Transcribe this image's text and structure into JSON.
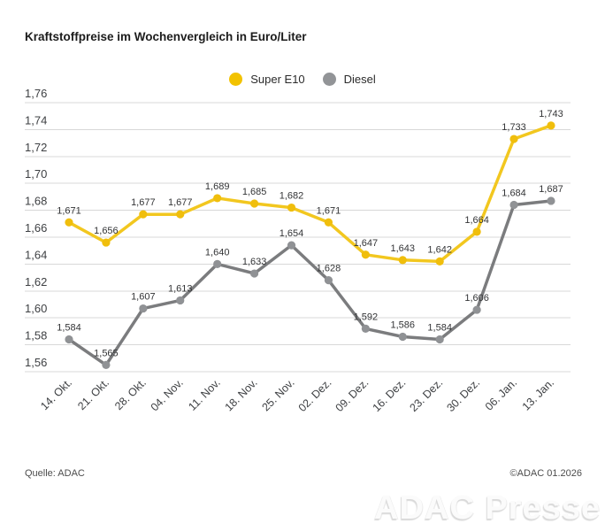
{
  "title": "Kraftstoffpreise im Wochenvergleich in Euro/Liter",
  "legend": {
    "items": [
      {
        "label": "Super E10",
        "color": "#F2C200"
      },
      {
        "label": "Diesel",
        "color": "#929497"
      }
    ]
  },
  "chart_data": {
    "type": "line",
    "title": "Kraftstoffpreise im Wochenvergleich in Euro/Liter",
    "xlabel": "",
    "ylabel": "Euro/Liter",
    "grid": true,
    "legend_position": "top",
    "categories": [
      "14. Okt.",
      "21. Okt.",
      "28. Okt.",
      "04. Nov.",
      "11. Nov.",
      "18. Nov.",
      "25. Nov.",
      "02. Dez.",
      "09. Dez.",
      "16. Dez.",
      "23. Dez.",
      "30. Dez.",
      "06. Jan.",
      "13. Jan."
    ],
    "series": [
      {
        "name": "Super E10",
        "values": [
          1.671,
          1.656,
          1.677,
          1.677,
          1.689,
          1.685,
          1.682,
          1.671,
          1.647,
          1.643,
          1.642,
          1.664,
          1.733,
          1.743
        ],
        "labels": [
          "1,671",
          "1,656",
          "1,677",
          "1,677",
          "1,689",
          "1,685",
          "1,682",
          "1,671",
          "1,647",
          "1,643",
          "1,642",
          "1,664",
          "1,733",
          "1,743"
        ],
        "line_color": "#F2C71F",
        "marker_color": "#F0BE0C"
      },
      {
        "name": "Diesel",
        "values": [
          1.584,
          1.565,
          1.607,
          1.613,
          1.64,
          1.633,
          1.654,
          1.628,
          1.592,
          1.586,
          1.584,
          1.606,
          1.684,
          1.687
        ],
        "labels": [
          "1,584",
          "1,565",
          "1,607",
          "1,613",
          "1,640",
          "1,633",
          "1,654",
          "1,628",
          "1,592",
          "1,586",
          "1,584",
          "1,606",
          "1,684",
          "1,687"
        ],
        "line_color": "#7B7C7E",
        "marker_color": "#909295"
      }
    ],
    "y_axis": {
      "min": 1.56,
      "max": 1.76,
      "step": 0.02,
      "tick_labels": [
        "1,76",
        "1,74",
        "1,72",
        "1,70",
        "1,68",
        "1,66",
        "1,64",
        "1,62",
        "1,60",
        "1,58",
        "1,56"
      ]
    },
    "ylim": [
      1.56,
      1.76
    ]
  },
  "footer": {
    "source": "Quelle: ADAC",
    "copyright": "©ADAC 01.2026"
  },
  "watermark": "ADAC Presse"
}
